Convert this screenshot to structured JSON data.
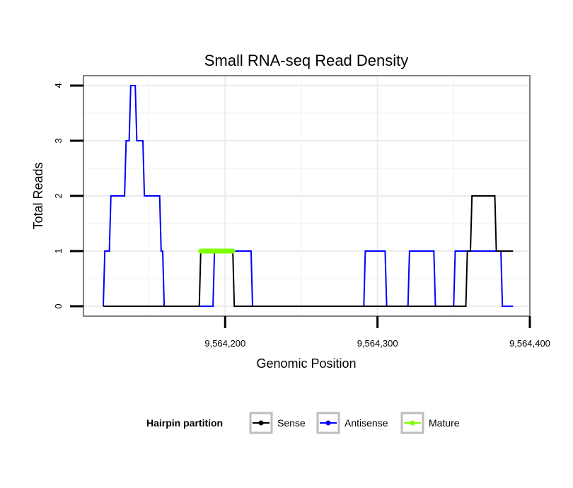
{
  "chart_data": {
    "type": "line",
    "title": "Small RNA-seq Read Density",
    "xlabel": "Genomic Position",
    "ylabel": "Total Reads",
    "xlim": [
      9564107,
      9564400
    ],
    "ylim": [
      -0.18,
      4.18
    ],
    "x_ticks": [
      {
        "value": 9564200,
        "label": "9,564,200"
      },
      {
        "value": 9564300,
        "label": "9,564,300"
      },
      {
        "value": 9564400,
        "label": "9,564,400"
      }
    ],
    "y_ticks": [
      {
        "value": 0,
        "label": "0"
      },
      {
        "value": 1,
        "label": "1"
      },
      {
        "value": 2,
        "label": "2"
      },
      {
        "value": 3,
        "label": "3"
      },
      {
        "value": 4,
        "label": "4"
      }
    ],
    "grid": true,
    "legend": {
      "title": "Hairpin partition",
      "position": "bottom",
      "items": [
        {
          "name": "Sense",
          "color": "#000000"
        },
        {
          "name": "Antisense",
          "color": "#0000ff"
        },
        {
          "name": "Mature",
          "color": "#80ff00"
        }
      ]
    },
    "series": [
      {
        "name": "Antisense",
        "color": "#0000ff",
        "points": [
          [
            9564120,
            0
          ],
          [
            9564121,
            1
          ],
          [
            9564124,
            1
          ],
          [
            9564125,
            2
          ],
          [
            9564134,
            2
          ],
          [
            9564135,
            3
          ],
          [
            9564137,
            3
          ],
          [
            9564138,
            4
          ],
          [
            9564141,
            4
          ],
          [
            9564142,
            3
          ],
          [
            9564146,
            3
          ],
          [
            9564147,
            2
          ],
          [
            9564157,
            2
          ],
          [
            9564158,
            1
          ],
          [
            9564159,
            1
          ],
          [
            9564160,
            0
          ],
          [
            9564192,
            0
          ],
          [
            9564193,
            1
          ],
          [
            9564217,
            1
          ],
          [
            9564218,
            0
          ],
          [
            9564291,
            0
          ],
          [
            9564292,
            1
          ],
          [
            9564305,
            1
          ],
          [
            9564306,
            0
          ],
          [
            9564320,
            0
          ],
          [
            9564321,
            1
          ],
          [
            9564337,
            1
          ],
          [
            9564338,
            0
          ],
          [
            9564350,
            0
          ],
          [
            9564351,
            1
          ],
          [
            9564381,
            1
          ],
          [
            9564382,
            0
          ],
          [
            9564389,
            0
          ]
        ]
      },
      {
        "name": "Sense",
        "color": "#000000",
        "points": [
          [
            9564120,
            0
          ],
          [
            9564183,
            0
          ],
          [
            9564184,
            1
          ],
          [
            9564205,
            1
          ],
          [
            9564206,
            0
          ],
          [
            9564358,
            0
          ],
          [
            9564359,
            1
          ],
          [
            9564361,
            1
          ],
          [
            9564362,
            2
          ],
          [
            9564377,
            2
          ],
          [
            9564378,
            1
          ],
          [
            9564389,
            1
          ]
        ]
      },
      {
        "name": "Mature",
        "color": "#80ff00",
        "points": [
          [
            9564184,
            1
          ],
          [
            9564205,
            1
          ]
        ]
      }
    ]
  }
}
